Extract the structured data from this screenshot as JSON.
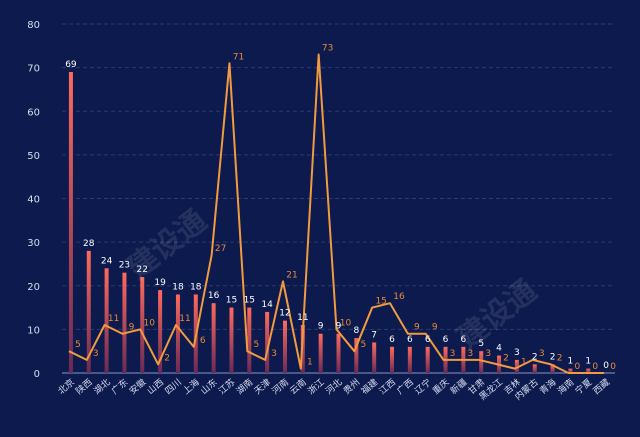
{
  "chart_data": {
    "type": "bar",
    "categories": [
      "北京",
      "陕西",
      "湖北",
      "广东",
      "安徽",
      "山西",
      "四川",
      "上海",
      "山东",
      "江苏",
      "湖南",
      "天津",
      "河南",
      "云南",
      "浙江",
      "河北",
      "贵州",
      "福建",
      "江西",
      "广西",
      "辽宁",
      "重庆",
      "新疆",
      "甘肃",
      "黑龙江",
      "吉林",
      "内蒙古",
      "青海",
      "海南",
      "宁夏",
      "西藏"
    ],
    "series": [
      {
        "chart": "bar",
        "values": [
          69,
          28,
          24,
          23,
          22,
          19,
          18,
          18,
          16,
          15,
          15,
          14,
          12,
          11,
          9,
          9,
          8,
          7,
          6,
          6,
          6,
          6,
          6,
          5,
          4,
          3,
          2,
          2,
          1,
          1,
          0
        ]
      },
      {
        "chart": "line",
        "values": [
          5,
          3,
          11,
          9,
          10,
          2,
          11,
          6,
          27,
          71,
          5,
          3,
          21,
          1,
          73,
          10,
          5,
          15,
          16,
          9,
          9,
          3,
          3,
          3,
          2,
          1,
          3,
          2,
          0,
          0,
          0
        ]
      }
    ],
    "ylim": [
      0,
      80
    ],
    "yticks": [
      0,
      10,
      20,
      30,
      40,
      50,
      60,
      70,
      80
    ],
    "grid": true,
    "colors": {
      "bar_top": "#ff6a5c",
      "bar_bottom": "#6a2a55",
      "line": "#f29a3f",
      "line_label": "#e98a35",
      "bar_label": "#ffffff",
      "axis_text": "#d6dcf0",
      "grid": "#2a3a72"
    }
  },
  "watermarks": [
    "建设通",
    "建设通"
  ]
}
